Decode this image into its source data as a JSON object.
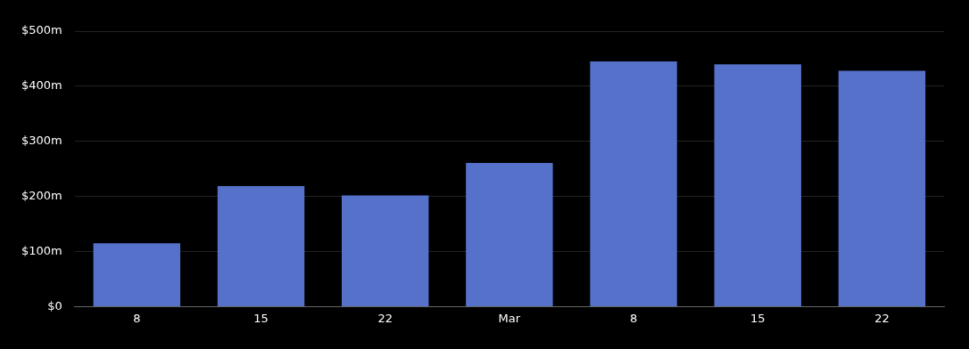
{
  "chart_data": {
    "type": "bar",
    "categories": [
      "8",
      "15",
      "22",
      "Mar",
      "8",
      "15",
      "22"
    ],
    "values": [
      115,
      219,
      202,
      261,
      445,
      440,
      428
    ],
    "color": "#5571c9",
    "ylim": [
      0,
      500
    ],
    "yticks": [
      {
        "value": 0,
        "label": "$0"
      },
      {
        "value": 100,
        "label": "$100m"
      },
      {
        "value": 200,
        "label": "$200m"
      },
      {
        "value": 300,
        "label": "$300m"
      },
      {
        "value": 400,
        "label": "$400m"
      },
      {
        "value": 500,
        "label": "$500m"
      }
    ],
    "grid": "y"
  }
}
